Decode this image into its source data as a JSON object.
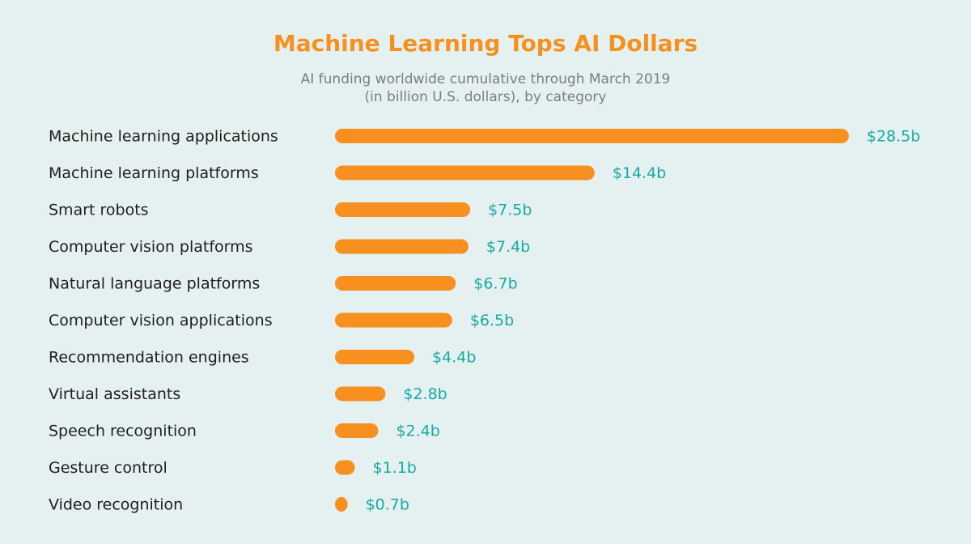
{
  "chart_data": {
    "type": "bar",
    "orientation": "horizontal",
    "title": "Machine Learning Tops AI Dollars",
    "subtitle": [
      "AI funding worldwide cumulative through March 2019",
      "(in billion U.S. dollars), by category"
    ],
    "categories": [
      "Machine learning applications",
      "Machine learning platforms",
      "Smart robots",
      "Computer vision platforms",
      "Natural language platforms",
      "Computer vision applications",
      "Recommendation engines",
      "Virtual assistants",
      "Speech recognition",
      "Gesture control",
      "Video recognition"
    ],
    "values": [
      28.5,
      14.4,
      7.5,
      7.4,
      6.7,
      6.5,
      4.4,
      2.8,
      2.4,
      1.1,
      0.7
    ],
    "value_labels": [
      "$28.5b",
      "$14.4b",
      "$7.5b",
      "$7.4b",
      "$6.7b",
      "$6.5b",
      "$4.4b",
      "$2.8b",
      "$2.4b",
      "$1.1b",
      "$0.7b"
    ],
    "color": "#f7901e",
    "label_color": "#19a9a6",
    "title_color": "#f7901e"
  }
}
